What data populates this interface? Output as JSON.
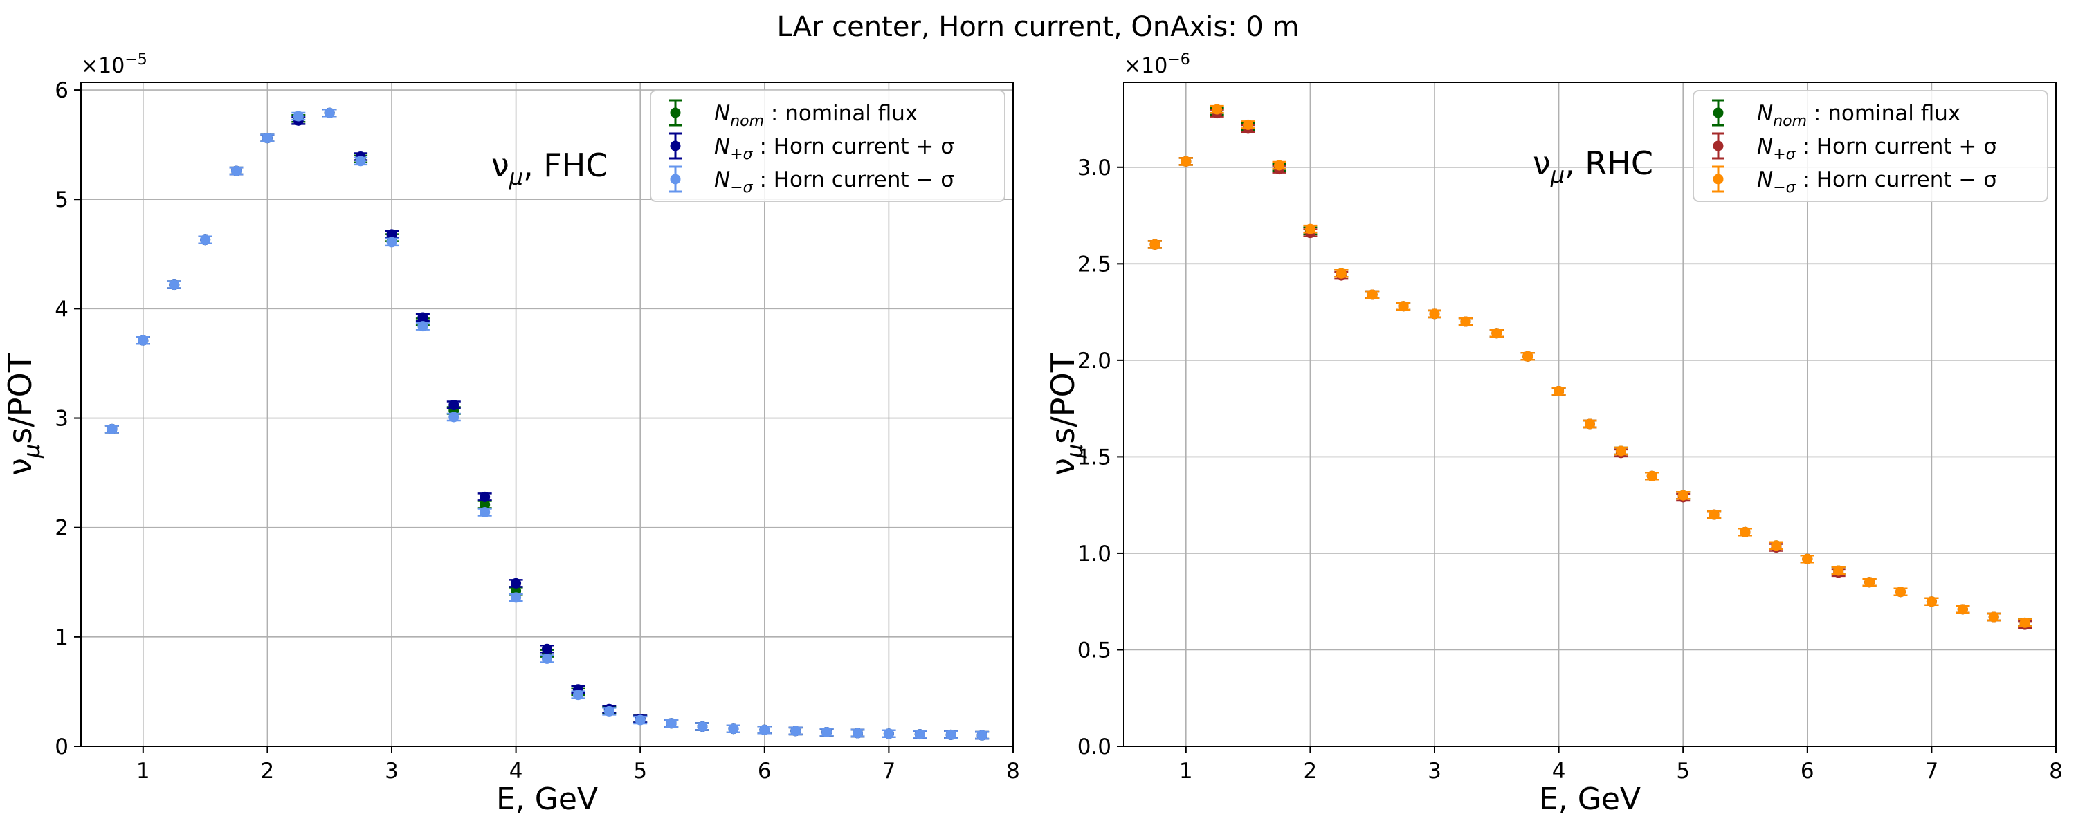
{
  "figure": {
    "title": "LAr center, Horn current, OnAxis: 0 m"
  },
  "chart_data": [
    {
      "type": "scatter",
      "xlabel": "E, GeV",
      "ylabel_main": "ν",
      "ylabel_sub": "μ",
      "ylabel_rest": "s/POT",
      "annotation": {
        "main": "ν",
        "sub": "μ",
        "rest": ", FHC"
      },
      "exponent": {
        "base": "×10",
        "power": "−5"
      },
      "xlim": [
        0.5,
        8
      ],
      "ylim": [
        0,
        6.07
      ],
      "xticks": [
        1,
        2,
        3,
        4,
        5,
        6,
        7,
        8
      ],
      "yticks": [
        0,
        1,
        2,
        3,
        4,
        5,
        6
      ],
      "ytick_labels": [
        "0",
        "1",
        "2",
        "3",
        "4",
        "5",
        "6"
      ],
      "grid": true,
      "legend_position": "upper-right",
      "y_scale_note": "values in units of 1e-5",
      "x": [
        0.75,
        1.0,
        1.25,
        1.5,
        1.75,
        2.0,
        2.25,
        2.5,
        2.75,
        3.0,
        3.25,
        3.5,
        3.75,
        4.0,
        4.25,
        4.5,
        4.75,
        5.0,
        5.25,
        5.5,
        5.75,
        6.0,
        6.25,
        6.5,
        6.75,
        7.0,
        7.25,
        7.5,
        7.75
      ],
      "series": [
        {
          "legend_sym": "N",
          "legend_sub": "nom",
          "legend_text": ": nominal flux",
          "color": "#006400",
          "values": [
            2.9,
            3.71,
            4.22,
            4.63,
            5.26,
            5.56,
            5.74,
            5.79,
            5.37,
            4.65,
            3.88,
            3.07,
            2.21,
            1.42,
            0.85,
            0.5,
            0.33,
            0.25,
            0.21,
            0.18,
            0.16,
            0.15,
            0.14,
            0.13,
            0.12,
            0.115,
            0.11,
            0.105,
            0.1
          ]
        },
        {
          "legend_sym": "N",
          "legend_sub": "+σ",
          "legend_text": ": Horn current + σ",
          "color": "#00008b",
          "values": [
            2.9,
            3.71,
            4.22,
            4.63,
            5.26,
            5.56,
            5.72,
            5.79,
            5.39,
            4.68,
            3.92,
            3.12,
            2.28,
            1.49,
            0.89,
            0.52,
            0.34,
            0.25,
            0.21,
            0.18,
            0.16,
            0.15,
            0.14,
            0.13,
            0.12,
            0.115,
            0.11,
            0.105,
            0.1
          ]
        },
        {
          "legend_sym": "N",
          "legend_sub": "−σ",
          "legend_text": ": Horn current − σ",
          "color": "#6495ed",
          "values": [
            2.9,
            3.71,
            4.22,
            4.63,
            5.26,
            5.56,
            5.76,
            5.79,
            5.35,
            4.61,
            3.84,
            3.01,
            2.14,
            1.36,
            0.8,
            0.47,
            0.32,
            0.24,
            0.21,
            0.18,
            0.16,
            0.15,
            0.14,
            0.13,
            0.12,
            0.115,
            0.11,
            0.105,
            0.1
          ]
        }
      ]
    },
    {
      "type": "scatter",
      "xlabel": "E, GeV",
      "ylabel_main": "ν",
      "ylabel_sub": "μ",
      "ylabel_rest": "s/POT",
      "annotation": {
        "main": "ν",
        "sub": "μ",
        "rest": ", RHC"
      },
      "exponent": {
        "base": "×10",
        "power": "−6"
      },
      "xlim": [
        0.5,
        8
      ],
      "ylim": [
        0,
        3.44
      ],
      "xticks": [
        1,
        2,
        3,
        4,
        5,
        6,
        7,
        8
      ],
      "yticks": [
        0,
        0.5,
        1.0,
        1.5,
        2.0,
        2.5,
        3.0
      ],
      "ytick_labels": [
        "0.0",
        "0.5",
        "1.0",
        "1.5",
        "2.0",
        "2.5",
        "3.0"
      ],
      "grid": true,
      "legend_position": "upper-right",
      "y_scale_note": "values in units of 1e-6",
      "x": [
        0.75,
        1.0,
        1.25,
        1.5,
        1.75,
        2.0,
        2.25,
        2.5,
        2.75,
        3.0,
        3.25,
        3.5,
        3.75,
        4.0,
        4.25,
        4.5,
        4.75,
        5.0,
        5.25,
        5.5,
        5.75,
        6.0,
        6.25,
        6.5,
        6.75,
        7.0,
        7.25,
        7.5,
        7.75
      ],
      "series": [
        {
          "legend_sym": "N",
          "legend_sub": "nom",
          "legend_text": ": nominal flux",
          "color": "#006400",
          "values": [
            2.6,
            3.03,
            3.29,
            3.21,
            3.0,
            2.67,
            2.45,
            2.34,
            2.28,
            2.24,
            2.2,
            2.14,
            2.02,
            1.84,
            1.67,
            1.53,
            1.4,
            1.3,
            1.2,
            1.11,
            1.04,
            0.97,
            0.91,
            0.85,
            0.8,
            0.75,
            0.71,
            0.67,
            0.64
          ]
        },
        {
          "legend_sym": "N",
          "legend_sub": "+σ",
          "legend_text": ": Horn current + σ",
          "color": "#a52a2a",
          "values": [
            2.6,
            3.03,
            3.28,
            3.2,
            2.99,
            2.66,
            2.44,
            2.34,
            2.28,
            2.24,
            2.2,
            2.14,
            2.02,
            1.84,
            1.67,
            1.52,
            1.4,
            1.29,
            1.2,
            1.11,
            1.03,
            0.97,
            0.9,
            0.85,
            0.8,
            0.75,
            0.71,
            0.67,
            0.63
          ]
        },
        {
          "legend_sym": "N",
          "legend_sub": "−σ",
          "legend_text": ": Horn current − σ",
          "color": "#ff8c00",
          "values": [
            2.6,
            3.03,
            3.3,
            3.22,
            3.01,
            2.68,
            2.45,
            2.34,
            2.28,
            2.24,
            2.2,
            2.14,
            2.02,
            1.84,
            1.67,
            1.53,
            1.4,
            1.3,
            1.2,
            1.11,
            1.04,
            0.97,
            0.91,
            0.85,
            0.8,
            0.75,
            0.71,
            0.67,
            0.64
          ]
        }
      ]
    }
  ]
}
